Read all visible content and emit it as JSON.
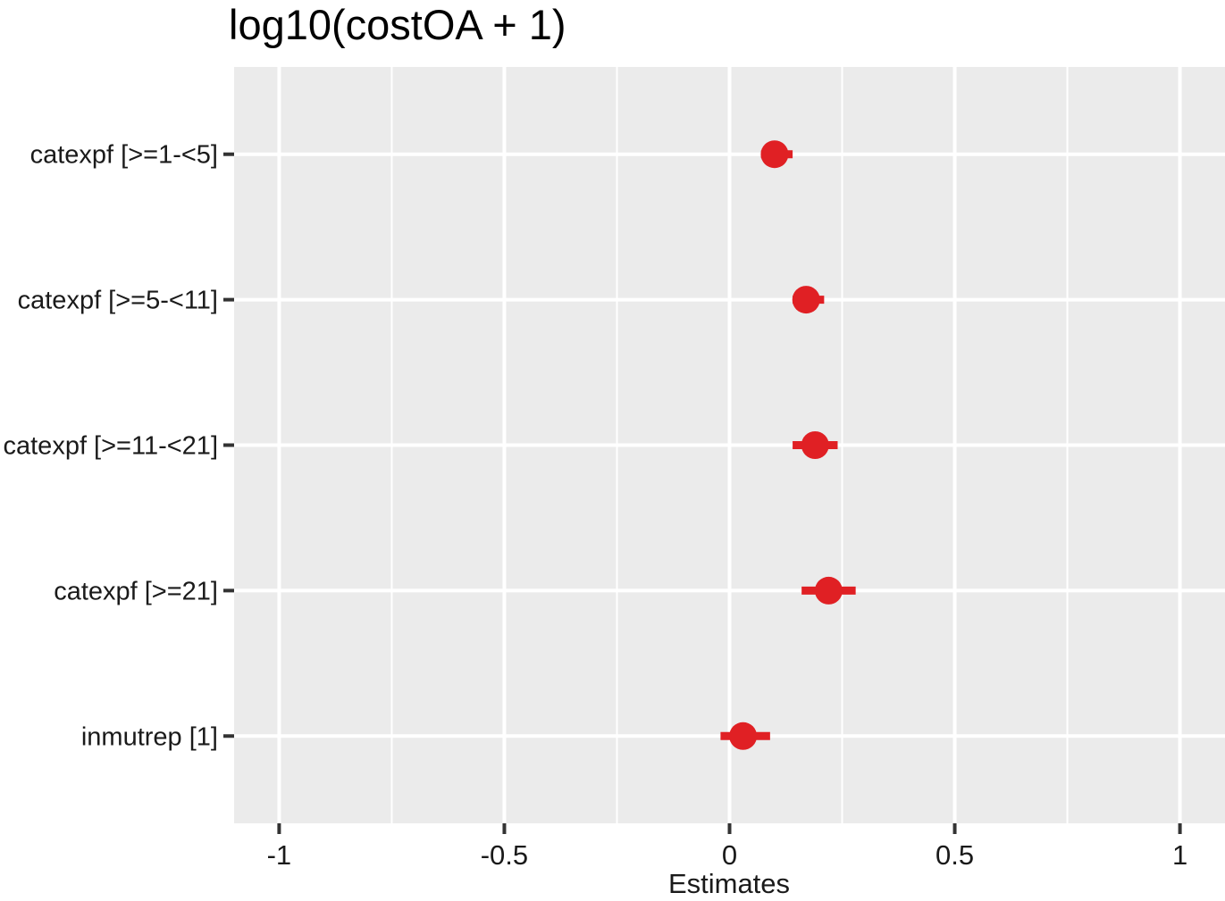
{
  "chart_data": {
    "type": "scatter",
    "subtype": "forest-coefficient-plot",
    "title": "log10(costOA + 1)",
    "xlabel": "Estimates",
    "ylabel": "",
    "categories": [
      "catexpf [>=1-<5]",
      "catexpf [>=5-<11]",
      "catexpf [>=11-<21]",
      "catexpf [>=21]",
      "inmutrep [1]"
    ],
    "points": [
      {
        "label": "catexpf [>=1-<5]",
        "estimate": 0.1,
        "ci_low": 0.07,
        "ci_high": 0.14
      },
      {
        "label": "catexpf [>=5-<11]",
        "estimate": 0.17,
        "ci_low": 0.14,
        "ci_high": 0.21
      },
      {
        "label": "catexpf [>=11-<21]",
        "estimate": 0.19,
        "ci_low": 0.14,
        "ci_high": 0.24
      },
      {
        "label": "catexpf [>=21]",
        "estimate": 0.22,
        "ci_low": 0.16,
        "ci_high": 0.28
      },
      {
        "label": "inmutrep [1]",
        "estimate": 0.03,
        "ci_low": -0.02,
        "ci_high": 0.09
      }
    ],
    "xlim": [
      -1.1,
      1.1
    ],
    "x_ticks": [
      -1,
      -0.5,
      0,
      0.5,
      1
    ],
    "x_tick_labels": [
      "-1",
      "-0.5",
      "0",
      "0.5",
      "1"
    ],
    "x_minor_ticks": [
      -0.75,
      -0.25,
      0.25,
      0.75
    ],
    "grid": true,
    "legend": "none",
    "colors": {
      "point": "#e02024",
      "panel_bg": "#ebebeb",
      "grid": "#ffffff",
      "tick": "#333333",
      "axis_text": "#1a1a1a",
      "title_text": "#000000"
    }
  }
}
